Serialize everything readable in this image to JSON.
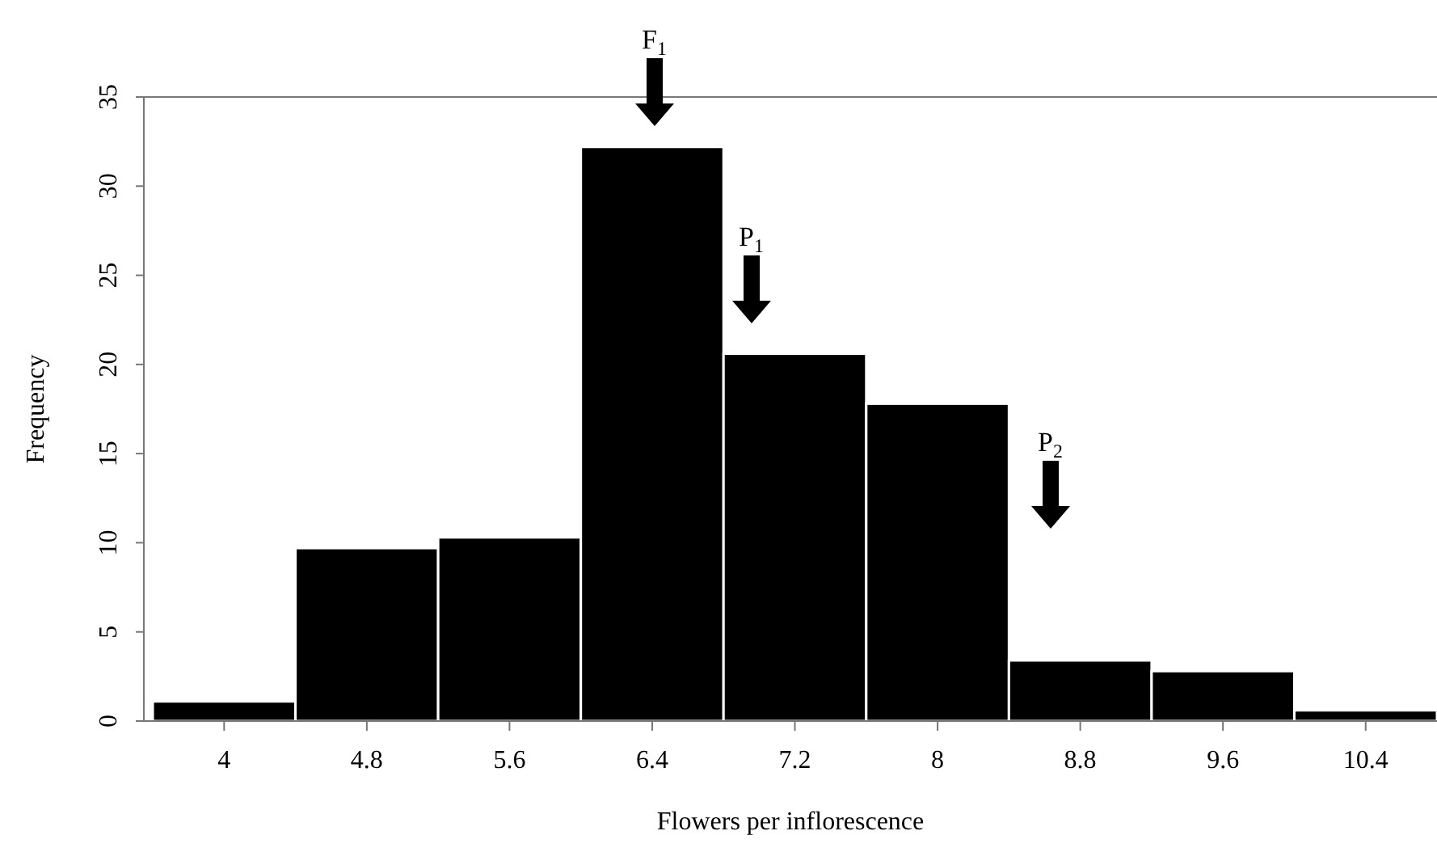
{
  "chart_data": {
    "type": "histogram",
    "xlabel": "Flowers per inflorescence",
    "ylabel": "Frequency",
    "bins": [
      3.6,
      4.4,
      5.2,
      6.0,
      6.8,
      7.6,
      8.4,
      9.2,
      10.0,
      10.8
    ],
    "values": [
      1.1,
      9.7,
      10.3,
      32.2,
      20.6,
      17.8,
      3.4,
      2.8,
      0.6
    ],
    "color": "#000000",
    "xlim": [
      3.55,
      10.8
    ],
    "xticks": [
      4,
      4.8,
      5.6,
      6.4,
      7.2,
      8,
      8.8,
      9.6,
      10.4
    ],
    "ylim": [
      0,
      35
    ],
    "yticks": [
      0,
      5,
      10,
      15,
      20,
      25,
      30,
      35
    ],
    "grid": false,
    "annotations": [
      "F$_{1}$",
      "P$_{1}$",
      "P$_{2}$"
    ]
  }
}
